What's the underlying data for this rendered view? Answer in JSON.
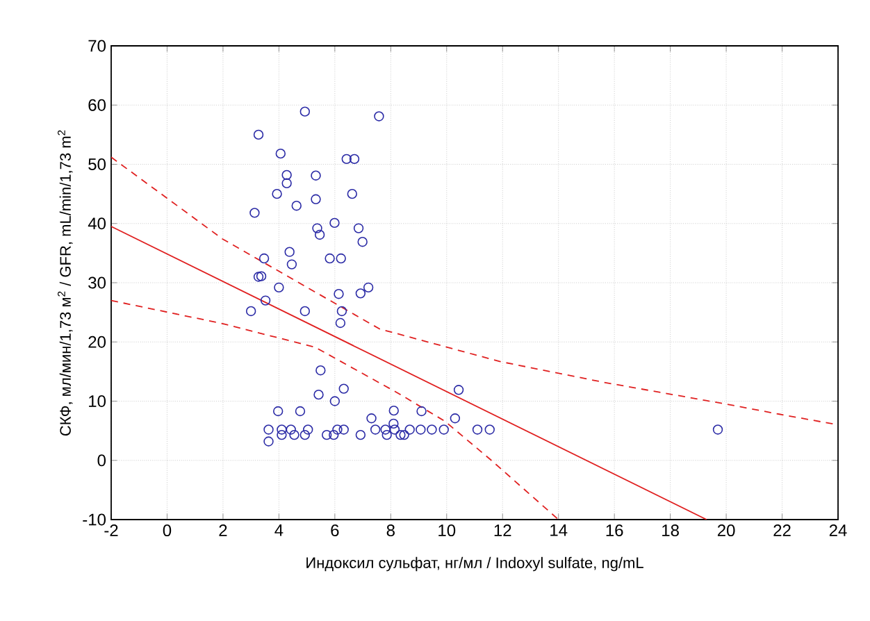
{
  "chart_data": {
    "type": "scatter",
    "xlabel": "Индоксил сульфат, нг/мл / Indoxyl sulfate, ng/mL",
    "ylabel": "СКФ, мл/мин/1,73 м$^{2}$ / GFR, mL/min/1,73 m$^{2}$",
    "xlim": [
      -2,
      24
    ],
    "ylim": [
      -10,
      70
    ],
    "xticks": [
      -2,
      0,
      2,
      4,
      6,
      8,
      10,
      12,
      14,
      16,
      18,
      20,
      22,
      24
    ],
    "yticks": [
      -10,
      0,
      10,
      20,
      30,
      40,
      50,
      60,
      70
    ],
    "grid": true,
    "series": [
      {
        "color": "#2b2ba6",
        "marker": "circle",
        "x": [
          4.93,
          7.58,
          3.27,
          4.06,
          6.42,
          6.7,
          4.28,
          4.28,
          5.32,
          3.93,
          5.32,
          4.63,
          6.62,
          3.13,
          5.37,
          5.46,
          5.99,
          6.85,
          6.99,
          3.47,
          4.38,
          4.46,
          5.82,
          6.22,
          3.27,
          3.37,
          4.0,
          6.14,
          6.92,
          7.2,
          3.52,
          3.0,
          4.93,
          6.25,
          6.2,
          5.49,
          5.42,
          6.32,
          6.0,
          3.97,
          4.76,
          8.11,
          9.1,
          10.43,
          7.31,
          10.3,
          3.63,
          4.1,
          4.43,
          5.04,
          6.09,
          6.32,
          7.45,
          7.81,
          8.14,
          8.68,
          9.07,
          9.47,
          9.9,
          11.1,
          11.54,
          4.1,
          4.55,
          4.93,
          5.71,
          5.96,
          6.92,
          7.86,
          8.35,
          8.48,
          3.63,
          8.1,
          19.7
        ],
        "values": [
          58.9,
          58.1,
          55.0,
          51.8,
          50.9,
          50.9,
          48.2,
          46.8,
          48.1,
          45.0,
          44.1,
          43.0,
          45.0,
          41.8,
          39.2,
          38.1,
          40.1,
          39.2,
          36.9,
          34.1,
          35.2,
          33.1,
          34.1,
          34.1,
          31.0,
          31.1,
          29.2,
          28.1,
          28.2,
          29.2,
          27.0,
          25.2,
          25.2,
          25.2,
          23.2,
          15.2,
          11.1,
          12.1,
          10.0,
          8.3,
          8.3,
          8.4,
          8.3,
          11.9,
          7.1,
          7.1,
          5.2,
          5.2,
          5.2,
          5.2,
          5.2,
          5.2,
          5.2,
          5.2,
          5.2,
          5.2,
          5.2,
          5.2,
          5.2,
          5.2,
          5.2,
          4.3,
          4.3,
          4.3,
          4.3,
          4.3,
          4.3,
          4.3,
          4.3,
          4.3,
          3.2,
          6.2,
          5.2
        ]
      },
      {
        "type": "line",
        "color": "#e02020",
        "line_style": "solid",
        "marker": "none",
        "x": [
          -2,
          19.3
        ],
        "values": [
          39.5,
          -10
        ]
      },
      {
        "type": "line",
        "color": "#e02020",
        "line_style": "dashed",
        "marker": "none",
        "x": [
          -2,
          1.98,
          7.6,
          11.9,
          15.6,
          20.0,
          21.9,
          24
        ],
        "values": [
          51.2,
          37.4,
          22.2,
          16.7,
          13.2,
          9.5,
          7.8,
          6.0
        ]
      },
      {
        "type": "line",
        "color": "#e02020",
        "line_style": "dashed",
        "marker": "none",
        "x": [
          -2,
          1.98,
          5.3,
          8.28,
          9.94,
          11.6,
          14
        ],
        "values": [
          27.0,
          23.1,
          19.1,
          11.3,
          6.6,
          0,
          -10
        ]
      }
    ]
  }
}
